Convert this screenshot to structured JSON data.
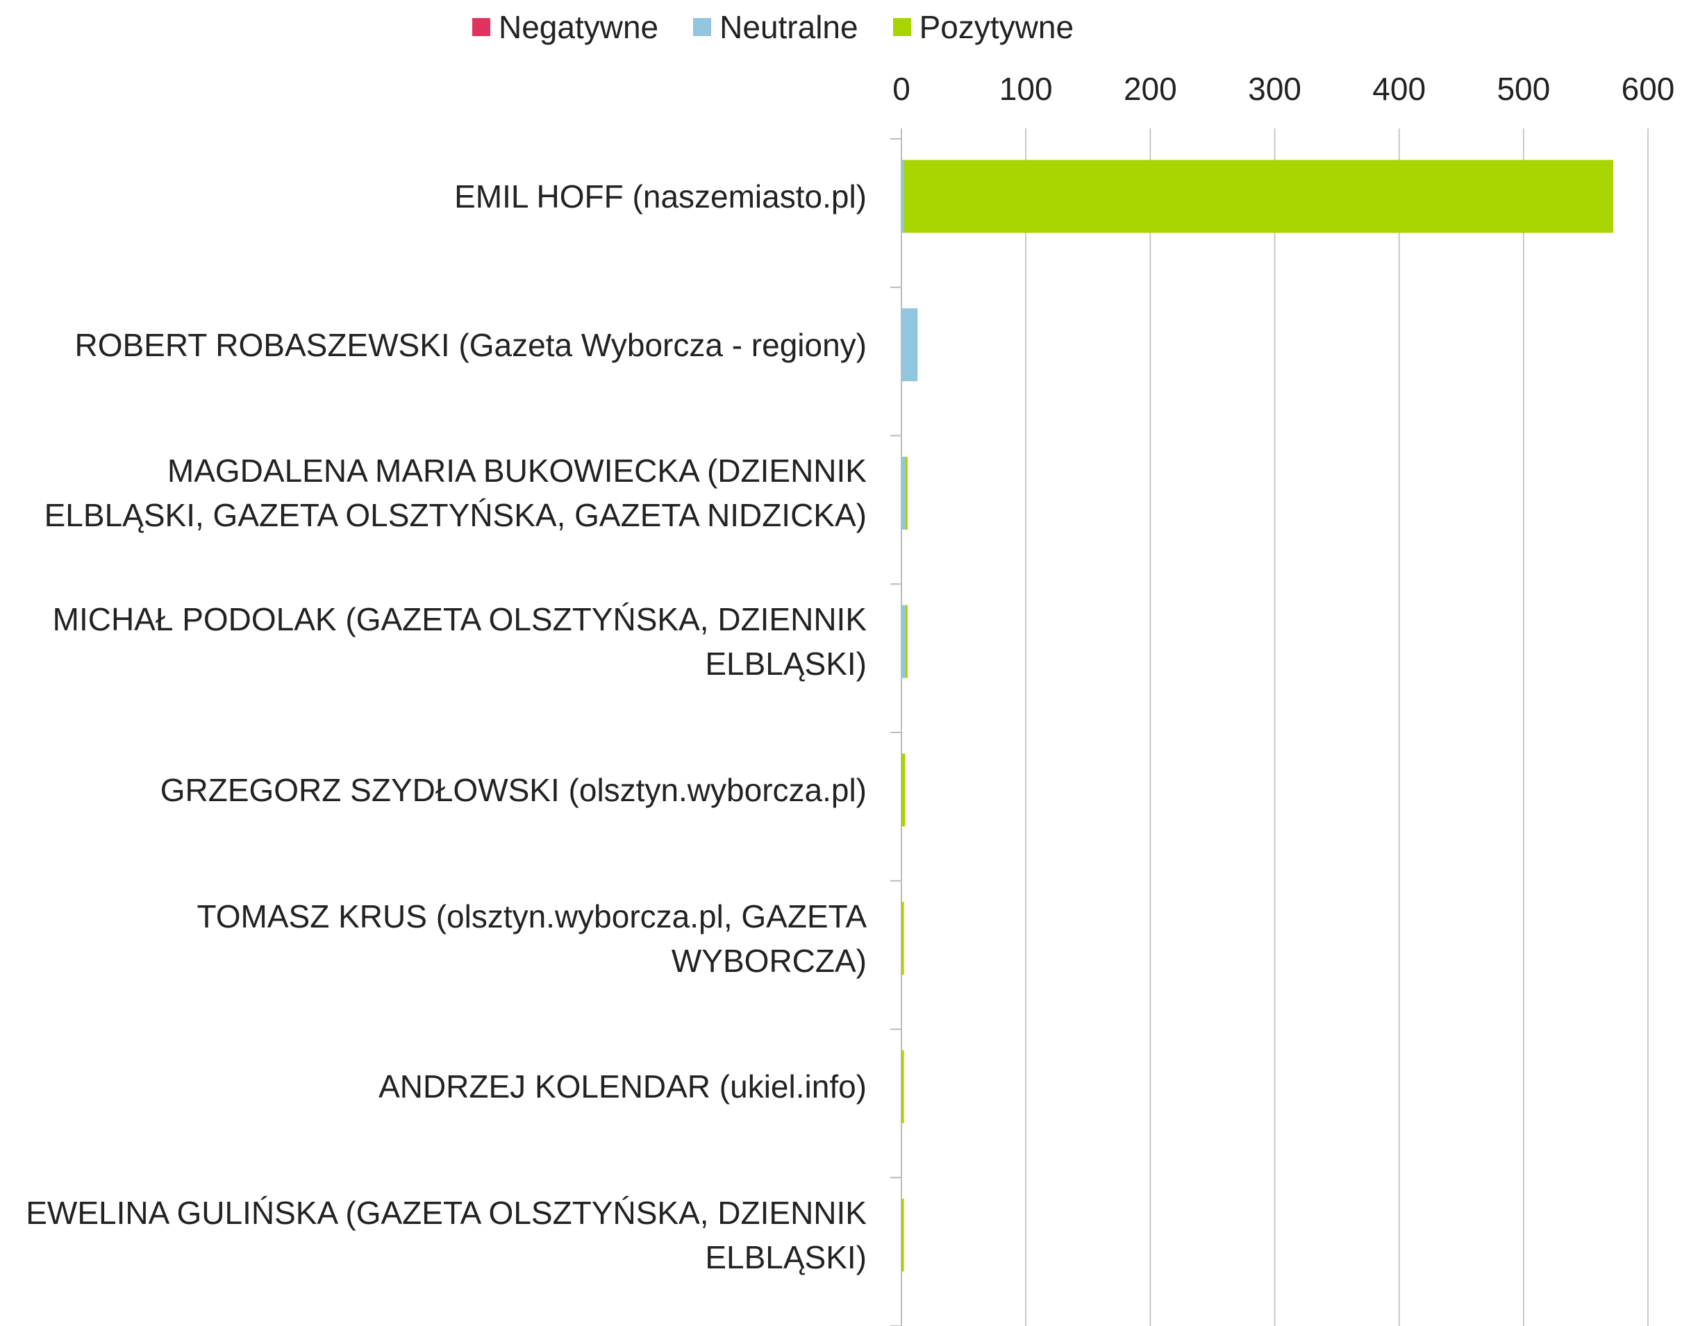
{
  "chart_data": {
    "type": "stacked_barh",
    "categories": [
      "EMIL HOFF (naszemiasto.pl)",
      "ROBERT ROBASZEWSKI (Gazeta Wyborcza - regiony)",
      "MAGDALENA MARIA BUKOWIECKA (DZIENNIK ELBLĄSKI, GAZETA OLSZTYŃSKA, GAZETA NIDZICKA)",
      "MICHAŁ PODOLAK (GAZETA OLSZTYŃSKA, DZIENNIK ELBLĄSKI)",
      "GRZEGORZ SZYDŁOWSKI (olsztyn.wyborcza.pl)",
      "TOMASZ KRUS (olsztyn.wyborcza.pl, GAZETA WYBORCZA)",
      "ANDRZEJ KOLENDAR (ukiel.info)",
      "EWELINA GULIŃSKA (GAZETA OLSZTYŃSKA, DZIENNIK ELBLĄSKI)"
    ],
    "series": [
      {
        "name": "Negatywne",
        "color": "#e0325f",
        "values": [
          0,
          0,
          0,
          0,
          0,
          0,
          0,
          0
        ]
      },
      {
        "name": "Neutralne",
        "color": "#92c5de",
        "values": [
          2,
          13,
          3,
          3,
          0,
          0,
          0,
          0
        ]
      },
      {
        "name": "Pozytywne",
        "color": "#a8d400",
        "values": [
          570,
          0,
          2,
          2,
          3,
          2,
          2,
          2
        ]
      }
    ],
    "xlim": [
      0,
      600
    ],
    "xticks": [
      0,
      100,
      200,
      300,
      400,
      500,
      600
    ],
    "grid": true,
    "legend": "top"
  }
}
